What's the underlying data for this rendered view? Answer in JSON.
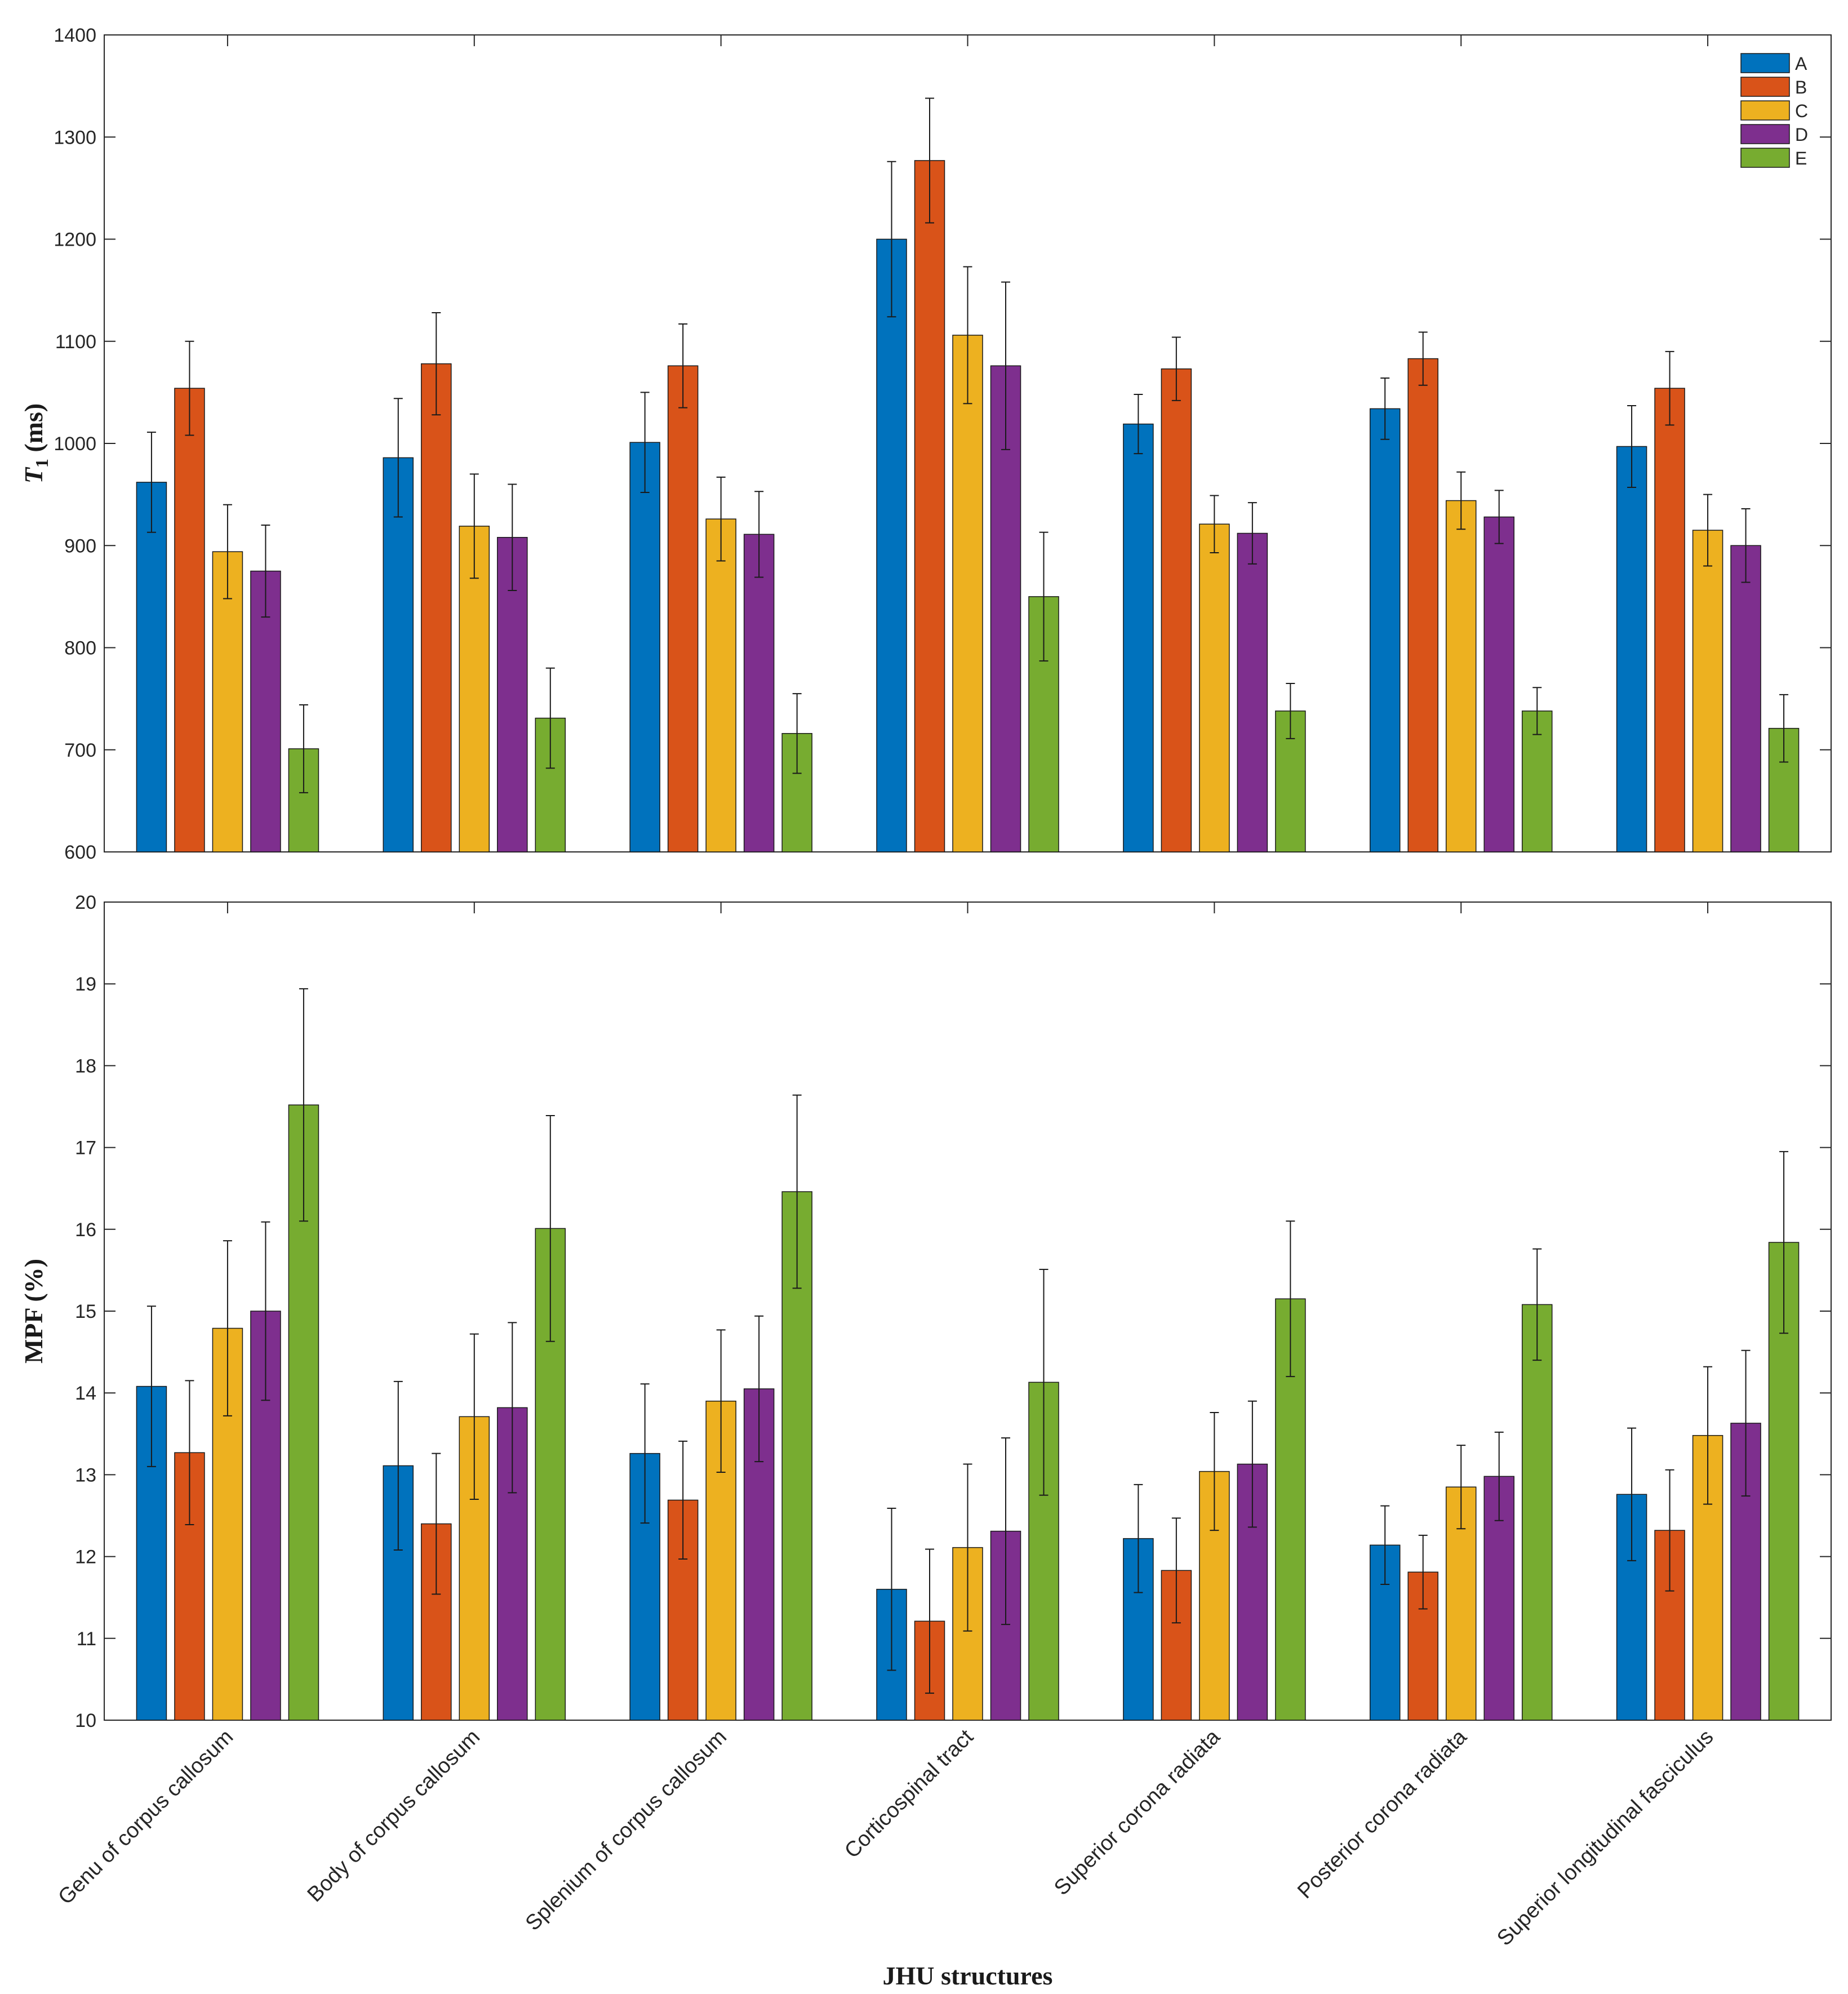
{
  "chart_data": {
    "type": "bar",
    "categories": [
      "Genu of corpus callosum",
      "Body of corpus callosum",
      "Splenium of corpus callosum",
      "Corticospinal tract",
      "Superior corona radiata",
      "Posterior corona radiata",
      "Superior longitudinal fasciculus"
    ],
    "xlabel": "JHU structures",
    "legend": {
      "placement": "top-right",
      "entries": [
        "A",
        "B",
        "C",
        "D",
        "E"
      ]
    },
    "colors": {
      "A": "#0072BD",
      "B": "#D95319",
      "C": "#EDB120",
      "D": "#7E2F8E",
      "E": "#77AC30"
    },
    "panels": [
      {
        "ylabel_main": "T",
        "ylabel_sub": "1",
        "ylabel_unit": " (ms)",
        "ylim": [
          600,
          1400
        ],
        "yticks": [
          "600",
          "700",
          "800",
          "900",
          "1000",
          "1100",
          "1200",
          "1300",
          "1400"
        ],
        "series": [
          {
            "name": "A",
            "values": [
              962,
              986,
              1001,
              1200,
              1019,
              1034,
              997
            ],
            "errors": [
              49,
              58,
              49,
              76,
              29,
              30,
              40
            ]
          },
          {
            "name": "B",
            "values": [
              1054,
              1078,
              1076,
              1277,
              1073,
              1083,
              1054
            ],
            "errors": [
              46,
              50,
              41,
              61,
              31,
              26,
              36
            ]
          },
          {
            "name": "C",
            "values": [
              894,
              919,
              926,
              1106,
              921,
              944,
              915
            ],
            "errors": [
              46,
              51,
              41,
              67,
              28,
              28,
              35
            ]
          },
          {
            "name": "D",
            "values": [
              875,
              908,
              911,
              1076,
              912,
              928,
              900
            ],
            "errors": [
              45,
              52,
              42,
              82,
              30,
              26,
              36
            ]
          },
          {
            "name": "E",
            "values": [
              701,
              731,
              716,
              850,
              738,
              738,
              721
            ],
            "errors": [
              43,
              49,
              39,
              63,
              27,
              23,
              33
            ]
          }
        ]
      },
      {
        "ylabel_main": "MPF",
        "ylabel_sub": "",
        "ylabel_unit": " (%)",
        "ylim": [
          10,
          20
        ],
        "yticks": [
          "10",
          "11",
          "12",
          "13",
          "14",
          "15",
          "16",
          "17",
          "18",
          "19",
          "20"
        ],
        "series": [
          {
            "name": "A",
            "values": [
              14.08,
              13.11,
              13.26,
              11.6,
              12.22,
              12.14,
              12.76
            ],
            "errors": [
              0.98,
              1.03,
              0.85,
              0.99,
              0.66,
              0.48,
              0.81
            ]
          },
          {
            "name": "B",
            "values": [
              13.27,
              12.4,
              12.69,
              11.21,
              11.83,
              11.81,
              12.32
            ],
            "errors": [
              0.88,
              0.86,
              0.72,
              0.88,
              0.64,
              0.45,
              0.74
            ]
          },
          {
            "name": "C",
            "values": [
              14.79,
              13.71,
              13.9,
              12.11,
              13.04,
              12.85,
              13.48
            ],
            "errors": [
              1.07,
              1.01,
              0.87,
              1.02,
              0.72,
              0.51,
              0.84
            ]
          },
          {
            "name": "D",
            "values": [
              15.0,
              13.82,
              14.05,
              12.31,
              13.13,
              12.98,
              13.63
            ],
            "errors": [
              1.09,
              1.04,
              0.89,
              1.14,
              0.77,
              0.54,
              0.89
            ]
          },
          {
            "name": "E",
            "values": [
              17.52,
              16.01,
              16.46,
              14.13,
              15.15,
              15.08,
              15.84
            ],
            "errors": [
              1.42,
              1.38,
              1.18,
              1.38,
              0.95,
              0.68,
              1.11
            ]
          }
        ]
      }
    ]
  }
}
